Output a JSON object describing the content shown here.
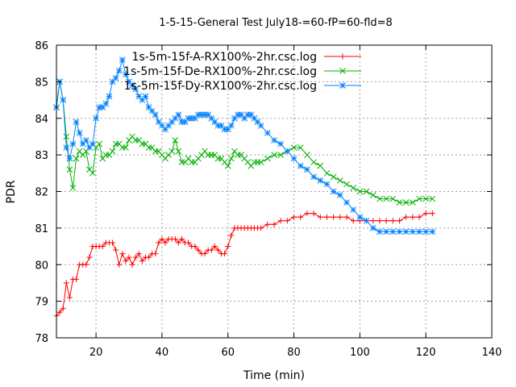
{
  "chart_data": {
    "type": "line",
    "title": "1-5-15-General Test July18-=60-fP=60-fld=8",
    "xlabel": "Time (min)",
    "ylabel": "PDR",
    "xlim": [
      8,
      140
    ],
    "ylim": [
      78,
      86
    ],
    "xticks": [
      20,
      40,
      60,
      80,
      100,
      120,
      140
    ],
    "yticks": [
      78,
      79,
      80,
      81,
      82,
      83,
      84,
      85,
      86
    ],
    "grid": true,
    "legend_position": "top-right",
    "series": [
      {
        "name": "1s-5m-15f-A-RX100%-2hr.csc.log",
        "color": "#ff0000",
        "marker": "plus",
        "x": [
          8,
          9,
          10,
          11,
          12,
          13,
          14,
          15,
          16,
          17,
          18,
          19,
          20,
          21,
          22,
          23,
          24,
          25,
          26,
          27,
          28,
          29,
          30,
          31,
          32,
          33,
          34,
          35,
          36,
          37,
          38,
          39,
          40,
          41,
          42,
          43,
          44,
          45,
          46,
          47,
          48,
          49,
          50,
          51,
          52,
          53,
          54,
          55,
          56,
          57,
          58,
          59,
          60,
          61,
          62,
          63,
          64,
          65,
          66,
          67,
          68,
          69,
          70,
          72,
          74,
          76,
          78,
          80,
          82,
          84,
          86,
          88,
          90,
          92,
          94,
          96,
          98,
          100,
          102,
          104,
          106,
          108,
          110,
          112,
          114,
          116,
          118,
          120,
          122
        ],
        "y": [
          78.6,
          78.7,
          78.8,
          79.5,
          79.1,
          79.6,
          79.6,
          80.0,
          80.0,
          80.0,
          80.2,
          80.5,
          80.5,
          80.5,
          80.5,
          80.6,
          80.6,
          80.6,
          80.4,
          80.0,
          80.3,
          80.1,
          80.2,
          80.0,
          80.2,
          80.3,
          80.1,
          80.2,
          80.2,
          80.3,
          80.3,
          80.6,
          80.7,
          80.6,
          80.7,
          80.7,
          80.7,
          80.6,
          80.7,
          80.6,
          80.6,
          80.5,
          80.5,
          80.4,
          80.3,
          80.3,
          80.4,
          80.4,
          80.5,
          80.4,
          80.3,
          80.3,
          80.5,
          80.8,
          81.0,
          81.0,
          81.0,
          81.0,
          81.0,
          81.0,
          81.0,
          81.0,
          81.0,
          81.1,
          81.1,
          81.2,
          81.2,
          81.3,
          81.3,
          81.4,
          81.4,
          81.3,
          81.3,
          81.3,
          81.3,
          81.3,
          81.2,
          81.2,
          81.2,
          81.2,
          81.2,
          81.2,
          81.2,
          81.2,
          81.3,
          81.3,
          81.3,
          81.4,
          81.4
        ]
      },
      {
        "name": "1s-5m-15f-De-RX100%-2hr.csc.log",
        "color": "#00b000",
        "marker": "cross",
        "x": [
          8,
          9,
          10,
          11,
          12,
          13,
          14,
          15,
          16,
          17,
          18,
          19,
          20,
          21,
          22,
          23,
          24,
          25,
          26,
          27,
          28,
          29,
          30,
          31,
          32,
          33,
          34,
          35,
          36,
          37,
          38,
          39,
          40,
          41,
          42,
          43,
          44,
          45,
          46,
          47,
          48,
          49,
          50,
          51,
          52,
          53,
          54,
          55,
          56,
          57,
          58,
          59,
          60,
          61,
          62,
          63,
          64,
          65,
          66,
          67,
          68,
          69,
          70,
          72,
          74,
          76,
          78,
          80,
          82,
          84,
          86,
          88,
          90,
          92,
          94,
          96,
          98,
          100,
          102,
          104,
          106,
          108,
          110,
          112,
          114,
          116,
          118,
          120,
          122
        ],
        "y": [
          84.3,
          85.0,
          84.5,
          83.5,
          82.6,
          82.1,
          82.9,
          83.1,
          83.0,
          83.1,
          82.6,
          82.5,
          83.2,
          83.3,
          82.9,
          83.0,
          83.0,
          83.1,
          83.3,
          83.3,
          83.2,
          83.2,
          83.4,
          83.5,
          83.4,
          83.4,
          83.3,
          83.3,
          83.2,
          83.2,
          83.1,
          83.1,
          83.0,
          82.9,
          83.0,
          83.1,
          83.4,
          83.1,
          82.8,
          82.8,
          82.9,
          82.8,
          82.8,
          82.9,
          83.0,
          83.1,
          83.0,
          83.0,
          83.0,
          82.9,
          82.9,
          82.8,
          82.7,
          82.9,
          83.1,
          83.0,
          83.0,
          82.9,
          82.8,
          82.7,
          82.8,
          82.8,
          82.8,
          82.9,
          83.0,
          83.0,
          83.1,
          83.2,
          83.2,
          83.0,
          82.8,
          82.7,
          82.5,
          82.4,
          82.3,
          82.2,
          82.1,
          82.0,
          82.0,
          81.9,
          81.8,
          81.8,
          81.8,
          81.7,
          81.7,
          81.7,
          81.8,
          81.8,
          81.8
        ]
      },
      {
        "name": "1s-5m-15f-Dy-RX100%-2hr.csc.log",
        "color": "#0080ff",
        "marker": "star",
        "x": [
          8,
          9,
          10,
          11,
          12,
          13,
          14,
          15,
          16,
          17,
          18,
          19,
          20,
          21,
          22,
          23,
          24,
          25,
          26,
          27,
          28,
          29,
          30,
          31,
          32,
          33,
          34,
          35,
          36,
          37,
          38,
          39,
          40,
          41,
          42,
          43,
          44,
          45,
          46,
          47,
          48,
          49,
          50,
          51,
          52,
          53,
          54,
          55,
          56,
          57,
          58,
          59,
          60,
          61,
          62,
          63,
          64,
          65,
          66,
          67,
          68,
          69,
          70,
          72,
          74,
          76,
          78,
          80,
          82,
          84,
          86,
          88,
          90,
          92,
          94,
          96,
          98,
          100,
          102,
          104,
          106,
          108,
          110,
          112,
          114,
          116,
          118,
          120,
          122
        ],
        "y": [
          84.3,
          85.0,
          84.5,
          83.2,
          82.9,
          83.3,
          83.9,
          83.6,
          83.3,
          83.4,
          83.2,
          83.3,
          84.0,
          84.3,
          84.3,
          84.4,
          84.6,
          85.0,
          85.1,
          85.3,
          85.6,
          85.2,
          85.0,
          84.9,
          84.8,
          84.6,
          84.5,
          84.6,
          84.3,
          84.2,
          84.1,
          83.9,
          83.8,
          83.7,
          83.8,
          83.9,
          84.0,
          84.1,
          83.9,
          83.9,
          84.0,
          84.0,
          84.0,
          84.1,
          84.1,
          84.1,
          84.1,
          84.0,
          83.9,
          83.8,
          83.8,
          83.7,
          83.7,
          83.8,
          84.0,
          84.1,
          84.1,
          84.0,
          84.1,
          84.1,
          84.0,
          83.9,
          83.8,
          83.6,
          83.4,
          83.3,
          83.1,
          82.9,
          82.7,
          82.6,
          82.4,
          82.3,
          82.2,
          82.0,
          81.9,
          81.7,
          81.5,
          81.3,
          81.2,
          81.0,
          80.9,
          80.9,
          80.9,
          80.9,
          80.9,
          80.9,
          80.9,
          80.9,
          80.9
        ]
      }
    ]
  }
}
